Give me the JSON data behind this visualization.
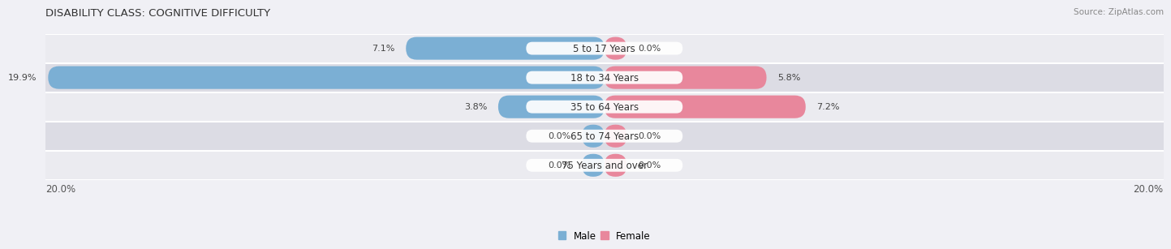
{
  "title": "DISABILITY CLASS: COGNITIVE DIFFICULTY",
  "source": "Source: ZipAtlas.com",
  "categories": [
    "5 to 17 Years",
    "18 to 34 Years",
    "35 to 64 Years",
    "65 to 74 Years",
    "75 Years and over"
  ],
  "male_values": [
    7.1,
    19.9,
    3.8,
    0.0,
    0.0
  ],
  "female_values": [
    0.0,
    5.8,
    7.2,
    0.0,
    0.0
  ],
  "male_color": "#7bafd4",
  "female_color": "#e8879c",
  "row_bg_light": "#ebebf0",
  "row_bg_dark": "#dcdce4",
  "divider_color": "#ffffff",
  "max_val": 20.0,
  "axis_label_left": "20.0%",
  "axis_label_right": "20.0%",
  "title_fontsize": 9.5,
  "label_fontsize": 8.5,
  "value_fontsize": 8.0,
  "tick_fontsize": 8.5,
  "source_fontsize": 7.5,
  "min_bar_display": 0.8
}
